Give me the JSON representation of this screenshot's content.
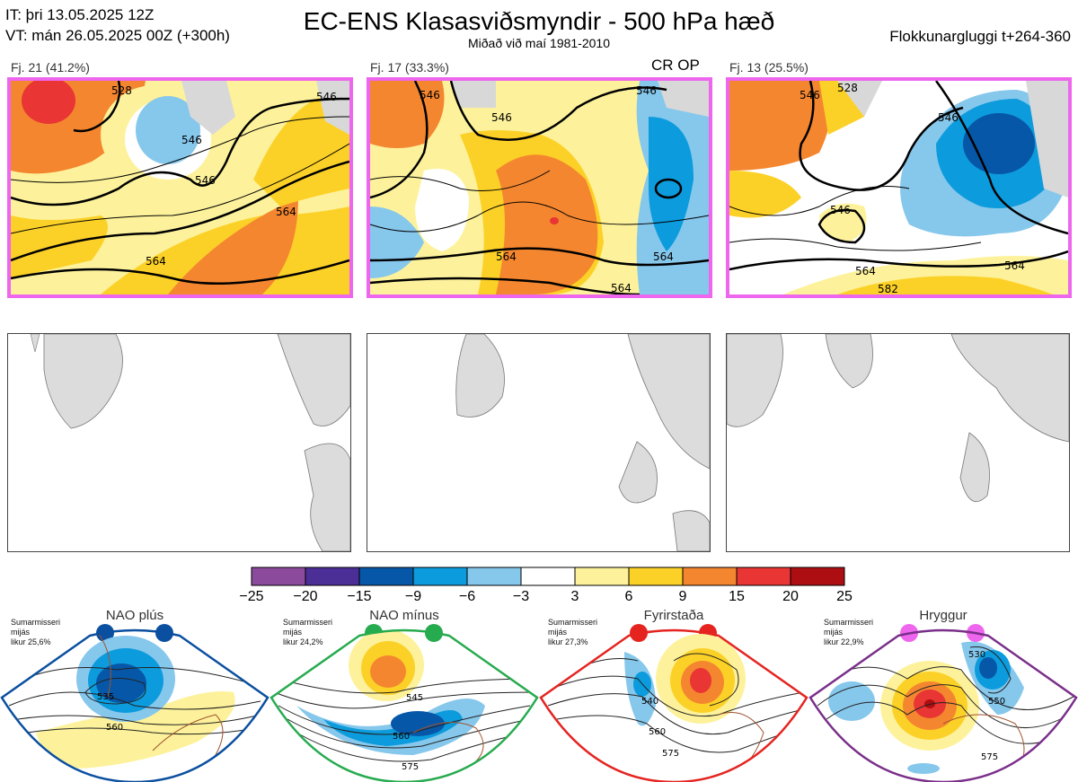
{
  "header": {
    "it": "IT: þri 13.05.2025 12Z",
    "vt": "VT: mán 26.05.2025 00Z  (+300h)",
    "title": "EC-ENS Klasasviðsmyndir - 500 hPa hæð",
    "subtitle": "Miðað við maí 1981-2010",
    "window": "Flokkunargluggi t+264-360"
  },
  "clusters": [
    {
      "label": "Fj. 21 (41.2%)",
      "tag": "",
      "contours": [
        "528",
        "546",
        "546",
        "546",
        "564",
        "564"
      ]
    },
    {
      "label": "Fj. 17 (33.3%)",
      "tag": "CR OP",
      "contours": [
        "546",
        "546",
        "546",
        "564",
        "564",
        "564"
      ]
    },
    {
      "label": "Fj. 13 (25.5%)",
      "tag": "",
      "contours": [
        "528",
        "546",
        "546",
        "546",
        "564",
        "564",
        "582"
      ]
    }
  ],
  "colorbar": {
    "colors": [
      "#8b4a9c",
      "#4b2e96",
      "#0757a8",
      "#0c9bdc",
      "#86c7ec",
      "#ffffff",
      "#fdf29b",
      "#fcd127",
      "#f4862f",
      "#e93534",
      "#ad0e12"
    ],
    "ticks": [
      "−25",
      "−20",
      "−15",
      "−9",
      "−6",
      "−3",
      "3",
      "6",
      "9",
      "15",
      "20",
      "25"
    ]
  },
  "regimes": [
    {
      "name": "NAO plús",
      "note": [
        "Sumarmisseri",
        "mijás",
        "likur 25,6%"
      ],
      "dot_color": "#0b4fa0",
      "frame_color": "#0b4fa0",
      "contours": [
        "535",
        "560"
      ]
    },
    {
      "name": "NAO mínus",
      "note": [
        "Sumarmisseri",
        "mijás",
        "likur 24,2%"
      ],
      "dot_color": "#27ab4f",
      "frame_color": "#27ab4f",
      "contours": [
        "545",
        "560",
        "575"
      ]
    },
    {
      "name": "Fyrirstaða",
      "note": [
        "Sumarmisseri",
        "mijás",
        "likur 27,3%"
      ],
      "dot_color": "#e52420",
      "frame_color": "#e52420",
      "contours": [
        "540",
        "560",
        "575"
      ]
    },
    {
      "name": "Hryggur",
      "note": [
        "Sumarmisseri",
        "mijás",
        "likur 22,9%"
      ],
      "dot_color": "#ee66ee",
      "frame_color": "#7a2f8a",
      "contours": [
        "530",
        "550",
        "575"
      ]
    }
  ]
}
